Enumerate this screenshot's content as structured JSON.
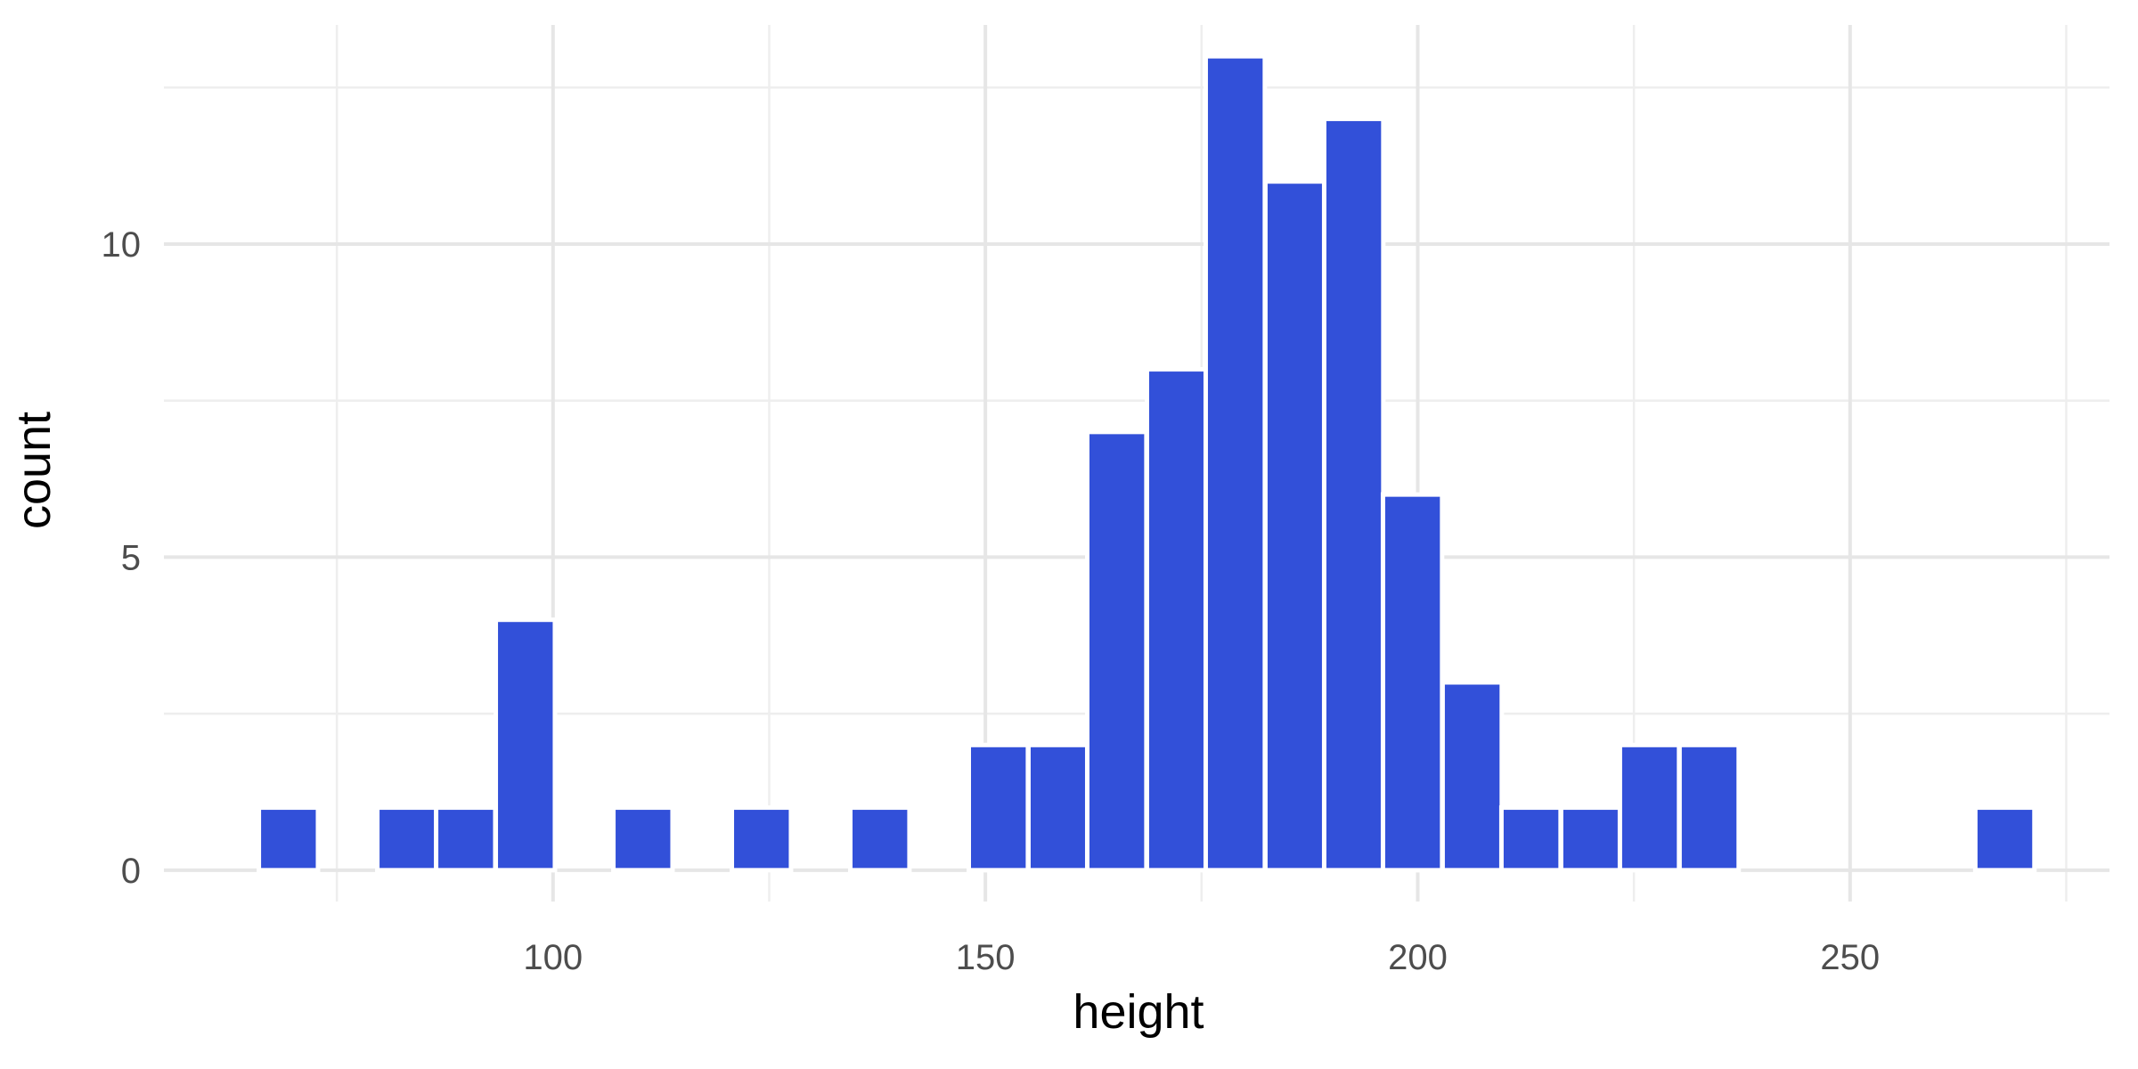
{
  "chart_data": {
    "type": "bar",
    "subtype": "histogram",
    "title": "",
    "xlabel": "height",
    "ylabel": "count",
    "xlim": [
      55,
      280
    ],
    "ylim": [
      -0.5,
      13.5
    ],
    "x_ticks": [
      {
        "value": 100,
        "label": "100"
      },
      {
        "value": 150,
        "label": "150"
      },
      {
        "value": 200,
        "label": "200"
      },
      {
        "value": 250,
        "label": "250"
      }
    ],
    "y_ticks": [
      {
        "value": 0,
        "label": "0"
      },
      {
        "value": 5,
        "label": "5"
      },
      {
        "value": 10,
        "label": "10"
      }
    ],
    "x_minor_ticks": [
      75,
      125,
      175,
      225,
      275
    ],
    "y_minor_ticks": [
      2.5,
      7.5,
      12.5
    ],
    "grid": true,
    "bin_width": 6.84,
    "bins": [
      {
        "x": 69.4,
        "count": 1
      },
      {
        "x": 76.2,
        "count": 0
      },
      {
        "x": 83.1,
        "count": 1
      },
      {
        "x": 89.9,
        "count": 1
      },
      {
        "x": 96.8,
        "count": 4
      },
      {
        "x": 103.6,
        "count": 0
      },
      {
        "x": 110.4,
        "count": 1
      },
      {
        "x": 117.3,
        "count": 0
      },
      {
        "x": 124.1,
        "count": 1
      },
      {
        "x": 131.0,
        "count": 0
      },
      {
        "x": 137.8,
        "count": 1
      },
      {
        "x": 144.7,
        "count": 0
      },
      {
        "x": 151.5,
        "count": 2
      },
      {
        "x": 158.4,
        "count": 2
      },
      {
        "x": 165.2,
        "count": 7
      },
      {
        "x": 172.1,
        "count": 8
      },
      {
        "x": 178.9,
        "count": 13
      },
      {
        "x": 185.8,
        "count": 11
      },
      {
        "x": 192.6,
        "count": 12
      },
      {
        "x": 199.4,
        "count": 6
      },
      {
        "x": 206.3,
        "count": 3
      },
      {
        "x": 213.1,
        "count": 1
      },
      {
        "x": 220.0,
        "count": 1
      },
      {
        "x": 226.8,
        "count": 2
      },
      {
        "x": 233.7,
        "count": 2
      },
      {
        "x": 240.5,
        "count": 0
      },
      {
        "x": 247.4,
        "count": 0
      },
      {
        "x": 254.2,
        "count": 0
      },
      {
        "x": 261.1,
        "count": 0
      },
      {
        "x": 267.9,
        "count": 1
      }
    ],
    "colors": {
      "bar": "#3250d9",
      "bar_outline": "#ffffff",
      "grid": "#e6e6e6",
      "background": "#ffffff"
    }
  }
}
